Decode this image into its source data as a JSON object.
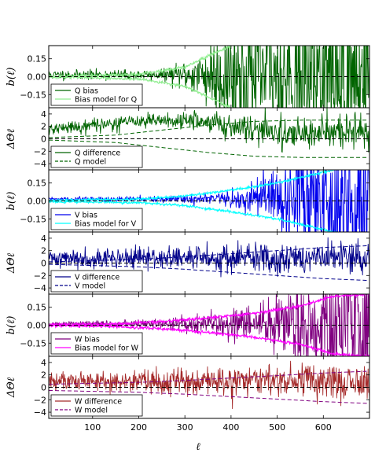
{
  "chart_data": {
    "type": "line",
    "x_range": [
      5,
      700
    ],
    "x_ticks": [
      100,
      200,
      300,
      400,
      500,
      600
    ],
    "xlabel": "ℓ",
    "panels": [
      {
        "id": "q-bias",
        "ylabel": "b(ℓ)",
        "ylim": [
          -0.26,
          0.26
        ],
        "yticks": [
          0.15,
          0.0,
          -0.15
        ],
        "ytick_labels": [
          "0.15",
          "0.00",
          "−0.15"
        ],
        "reference_line": 0,
        "legend": [
          {
            "label": "Q bias",
            "color": "#006400",
            "style": "solid"
          },
          {
            "label": "Bias model for Q",
            "color": "#90ee90",
            "style": "solid"
          }
        ],
        "series": [
          {
            "name": "Q bias",
            "color": "#006400",
            "kind": "noise",
            "center": 0.015,
            "noise_sigma": [
              [
                5,
                0.02
              ],
              [
                250,
                0.02
              ],
              [
                330,
                0.09
              ],
              [
                380,
                0.25
              ],
              [
                700,
                0.35
              ]
            ],
            "seed": 11
          },
          {
            "name": "Bias model for Q",
            "color": "#90ee90",
            "kind": "band",
            "band": [
              [
                5,
                0.0
              ],
              [
                200,
                0.02
              ],
              [
                300,
                0.08
              ],
              [
                400,
                0.26
              ],
              [
                700,
                0.4
              ]
            ],
            "jitter": 0.006,
            "seed": 12
          }
        ]
      },
      {
        "id": "q-diff",
        "ylabel": "ΔΘℓ",
        "ylim": [
          -5,
          5
        ],
        "yticks": [
          4,
          2,
          0,
          -2,
          -4
        ],
        "ytick_labels": [
          "4",
          "2",
          "0",
          "−2",
          "−4"
        ],
        "reference_line": 0,
        "legend": [
          {
            "label": "Q difference",
            "color": "#006400",
            "style": "solid"
          },
          {
            "label": "Q model",
            "color": "#006400",
            "style": "dashed"
          }
        ],
        "series": [
          {
            "name": "Q difference",
            "color": "#006400",
            "kind": "noise",
            "center_curve": [
              [
                5,
                1.5
              ],
              [
                100,
                2.2
              ],
              [
                200,
                2.8
              ],
              [
                300,
                3.0
              ],
              [
                400,
                2.2
              ],
              [
                500,
                1.0
              ],
              [
                600,
                1.0
              ],
              [
                700,
                1.0
              ]
            ],
            "noise_sigma": [
              [
                5,
                0.5
              ],
              [
                300,
                0.6
              ],
              [
                400,
                1.1
              ],
              [
                700,
                1.4
              ]
            ],
            "seed": 21
          },
          {
            "name": "Q model",
            "color": "#006400",
            "kind": "dashed-band",
            "band": [
              [
                5,
                0.2
              ],
              [
                150,
                0.6
              ],
              [
                250,
                1.4
              ],
              [
                350,
                2.2
              ],
              [
                450,
                2.8
              ],
              [
                550,
                3.0
              ],
              [
                700,
                3.0
              ]
            ]
          }
        ]
      },
      {
        "id": "v-bias",
        "ylabel": "b(ℓ)",
        "ylim": [
          -0.26,
          0.26
        ],
        "yticks": [
          0.15,
          0.0,
          -0.15
        ],
        "ytick_labels": [
          "0.15",
          "0.00",
          "−0.15"
        ],
        "reference_line": 0,
        "legend": [
          {
            "label": "V bias",
            "color": "#0000ee",
            "style": "solid"
          },
          {
            "label": "Bias model for V",
            "color": "#00ffff",
            "style": "solid"
          }
        ],
        "series": [
          {
            "name": "V bias",
            "color": "#0000ee",
            "kind": "noise",
            "center": 0.015,
            "noise_sigma": [
              [
                5,
                0.008
              ],
              [
                300,
                0.015
              ],
              [
                400,
                0.04
              ],
              [
                500,
                0.12
              ],
              [
                600,
                0.3
              ],
              [
                700,
                0.35
              ]
            ],
            "seed": 31
          },
          {
            "name": "Bias model for V",
            "color": "#00ffff",
            "kind": "band",
            "band": [
              [
                5,
                0.005
              ],
              [
                200,
                0.015
              ],
              [
                300,
                0.04
              ],
              [
                400,
                0.09
              ],
              [
                500,
                0.15
              ],
              [
                600,
                0.24
              ],
              [
                700,
                0.34
              ]
            ],
            "jitter": 0.005,
            "seed": 32
          }
        ]
      },
      {
        "id": "v-diff",
        "ylabel": "ΔΘℓ",
        "ylim": [
          -5,
          5
        ],
        "yticks": [
          4,
          2,
          0,
          -2,
          -4
        ],
        "ytick_labels": [
          "4",
          "2",
          "0",
          "−2",
          "−4"
        ],
        "reference_line": 0,
        "legend": [
          {
            "label": "V difference",
            "color": "#00008b",
            "style": "solid"
          },
          {
            "label": "V model",
            "color": "#00008b",
            "style": "dashed"
          }
        ],
        "series": [
          {
            "name": "V difference",
            "color": "#00008b",
            "kind": "noise",
            "center": 0.8,
            "noise_sigma": [
              [
                5,
                0.7
              ],
              [
                300,
                0.9
              ],
              [
                500,
                1.3
              ],
              [
                700,
                1.4
              ]
            ],
            "seed": 41
          },
          {
            "name": "V model",
            "color": "#00008b",
            "kind": "dashed-band",
            "band": [
              [
                5,
                0.2
              ],
              [
                200,
                0.6
              ],
              [
                300,
                1.0
              ],
              [
                400,
                1.5
              ],
              [
                500,
                2.0
              ],
              [
                600,
                2.5
              ],
              [
                700,
                2.8
              ]
            ]
          }
        ]
      },
      {
        "id": "w-bias",
        "ylabel": "b(ℓ)",
        "ylim": [
          -0.26,
          0.26
        ],
        "yticks": [
          0.15,
          0.0,
          -0.15
        ],
        "ytick_labels": [
          "0.15",
          "0.00",
          "−0.15"
        ],
        "reference_line": 0,
        "legend": [
          {
            "label": "W bias",
            "color": "#800080",
            "style": "solid"
          },
          {
            "label": "Bias model for W",
            "color": "#ff00ff",
            "style": "solid"
          }
        ],
        "series": [
          {
            "name": "W bias",
            "color": "#800080",
            "kind": "noise",
            "center": 0.01,
            "noise_sigma": [
              [
                5,
                0.01
              ],
              [
                250,
                0.02
              ],
              [
                350,
                0.05
              ],
              [
                450,
                0.08
              ],
              [
                550,
                0.15
              ],
              [
                620,
                0.3
              ],
              [
                700,
                0.35
              ]
            ],
            "seed": 51
          },
          {
            "name": "Bias model for W",
            "color": "#ff00ff",
            "kind": "band",
            "band": [
              [
                5,
                0.005
              ],
              [
                150,
                0.01
              ],
              [
                250,
                0.03
              ],
              [
                350,
                0.06
              ],
              [
                450,
                0.1
              ],
              [
                550,
                0.16
              ],
              [
                620,
                0.24
              ],
              [
                700,
                0.26
              ]
            ],
            "jitter": 0.006,
            "seed": 52
          }
        ]
      },
      {
        "id": "w-diff",
        "ylabel": "ΔΘℓ",
        "ylim": [
          -5,
          5
        ],
        "yticks": [
          4,
          2,
          0,
          -2,
          -4
        ],
        "ytick_labels": [
          "4",
          "2",
          "0",
          "−2",
          "−4"
        ],
        "reference_line": 0,
        "legend": [
          {
            "label": "W difference",
            "color": "#a52a2a",
            "style": "solid"
          },
          {
            "label": "W model",
            "color": "#800080",
            "style": "dashed"
          }
        ],
        "series": [
          {
            "name": "W difference",
            "color": "#a52a2a",
            "kind": "noise",
            "center": 1.0,
            "noise_sigma": [
              [
                5,
                0.8
              ],
              [
                300,
                1.0
              ],
              [
                500,
                1.2
              ],
              [
                700,
                1.4
              ]
            ],
            "seed": 61
          },
          {
            "name": "W model",
            "color": "#800080",
            "kind": "dashed-band",
            "band": [
              [
                5,
                0.5
              ],
              [
                200,
                0.8
              ],
              [
                300,
                1.1
              ],
              [
                400,
                1.5
              ],
              [
                500,
                1.9
              ],
              [
                600,
                2.3
              ],
              [
                700,
                2.6
              ]
            ]
          }
        ]
      }
    ]
  }
}
